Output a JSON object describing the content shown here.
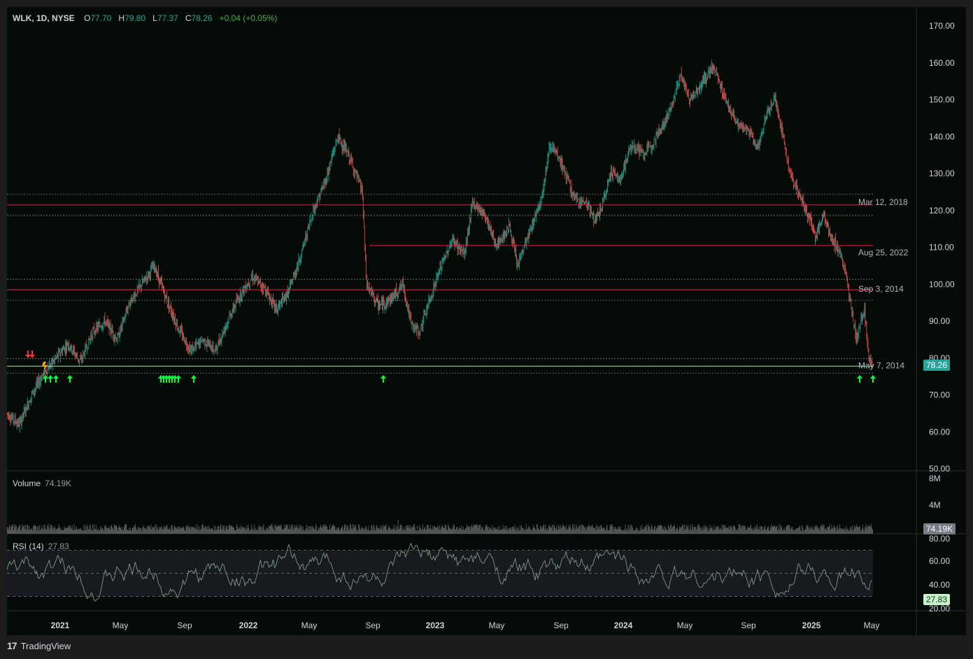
{
  "header": {
    "symbol": "WLK, 1D, NYSE",
    "open_label": "O",
    "open_value": "77.70",
    "high_label": "H",
    "high_value": "79.80",
    "low_label": "L",
    "low_value": "77.37",
    "close_label": "C",
    "close_value": "78.26",
    "change": "+0.04 (+0.05%)"
  },
  "price_axis": {
    "ticks": [
      "170.00",
      "160.00",
      "150.00",
      "140.00",
      "130.00",
      "120.00",
      "110.00",
      "100.00",
      "90.00",
      "80.00",
      "70.00",
      "60.00",
      "50.00"
    ],
    "current_price": "78.26"
  },
  "levels": [
    {
      "label": "Mar 12, 2018",
      "price": 121.5,
      "color": "#e0244d"
    },
    {
      "label": "Aug 25, 2022",
      "price": 110.5,
      "color": "#e0244d"
    },
    {
      "label": "Sep 3, 2014",
      "price": 98.5,
      "color": "#e0244d"
    },
    {
      "label": "May 7, 2014",
      "price": 77.8,
      "color": "#9be7a2"
    }
  ],
  "volume": {
    "title": "Volume",
    "value": "74.19K",
    "axis_ticks": [
      "8M",
      "4M"
    ],
    "current_tag": "74.19K"
  },
  "rsi": {
    "title": "RSI (14)",
    "value": "27.83",
    "axis_ticks": [
      "80.00",
      "60.00",
      "40.00",
      "20.00"
    ],
    "current_tag": "27.83"
  },
  "time_axis": [
    "2021",
    "May",
    "Sep",
    "2022",
    "May",
    "Sep",
    "2023",
    "May",
    "Sep",
    "2024",
    "May",
    "Sep",
    "2025",
    "May"
  ],
  "footer": {
    "brand": "TradingView",
    "logo": "17"
  },
  "colors": {
    "up": "#26a69a",
    "down": "#ef5350",
    "bg": "#040a05",
    "level_red": "#e0244d",
    "signal_green": "#00ff3c"
  },
  "chart_data": {
    "type": "candlestick",
    "ylim": [
      50,
      172
    ],
    "price_path": [
      [
        0,
        65
      ],
      [
        3,
        62
      ],
      [
        6,
        70
      ],
      [
        9,
        76
      ],
      [
        12,
        80
      ],
      [
        15,
        84
      ],
      [
        18,
        79
      ],
      [
        21,
        87
      ],
      [
        24,
        90
      ],
      [
        27,
        85
      ],
      [
        30,
        95
      ],
      [
        33,
        100
      ],
      [
        36,
        105
      ],
      [
        39,
        96
      ],
      [
        42,
        88
      ],
      [
        45,
        82
      ],
      [
        48,
        85
      ],
      [
        51,
        82
      ],
      [
        54,
        90
      ],
      [
        57,
        97
      ],
      [
        60,
        102
      ],
      [
        63,
        99
      ],
      [
        66,
        93
      ],
      [
        69,
        98
      ],
      [
        72,
        108
      ],
      [
        75,
        120
      ],
      [
        78,
        128
      ],
      [
        81,
        140
      ],
      [
        84,
        134
      ],
      [
        87,
        125
      ],
      [
        88,
        100
      ],
      [
        91,
        94
      ],
      [
        94,
        96
      ],
      [
        97,
        100
      ],
      [
        99,
        89
      ],
      [
        101,
        87
      ],
      [
        103,
        94
      ],
      [
        106,
        104
      ],
      [
        109,
        112
      ],
      [
        112,
        108
      ],
      [
        114,
        122
      ],
      [
        117,
        119
      ],
      [
        120,
        110
      ],
      [
        123,
        116
      ],
      [
        125,
        105
      ],
      [
        128,
        114
      ],
      [
        131,
        124
      ],
      [
        133,
        138
      ],
      [
        136,
        132
      ],
      [
        139,
        123
      ],
      [
        142,
        122
      ],
      [
        144,
        117
      ],
      [
        146,
        122
      ],
      [
        148,
        131
      ],
      [
        150,
        128
      ],
      [
        153,
        138
      ],
      [
        156,
        135
      ],
      [
        159,
        140
      ],
      [
        162,
        146
      ],
      [
        165,
        157
      ],
      [
        167,
        150
      ],
      [
        170,
        154
      ],
      [
        173,
        159
      ],
      [
        176,
        150
      ],
      [
        179,
        143
      ],
      [
        182,
        141
      ],
      [
        184,
        137
      ],
      [
        186,
        146
      ],
      [
        188,
        151
      ],
      [
        190,
        140
      ],
      [
        192,
        129
      ],
      [
        195,
        122
      ],
      [
        198,
        113
      ],
      [
        200,
        119
      ],
      [
        202,
        112
      ],
      [
        204,
        109
      ],
      [
        206,
        99
      ],
      [
        207,
        92
      ],
      [
        208,
        85
      ],
      [
        209,
        90
      ],
      [
        210,
        93
      ],
      [
        211,
        80
      ],
      [
        212,
        78
      ]
    ],
    "volume_spike_index": 118,
    "rsi_range": [
      20,
      80
    ],
    "signals_up_count": 17,
    "signals_down_count": 3
  }
}
